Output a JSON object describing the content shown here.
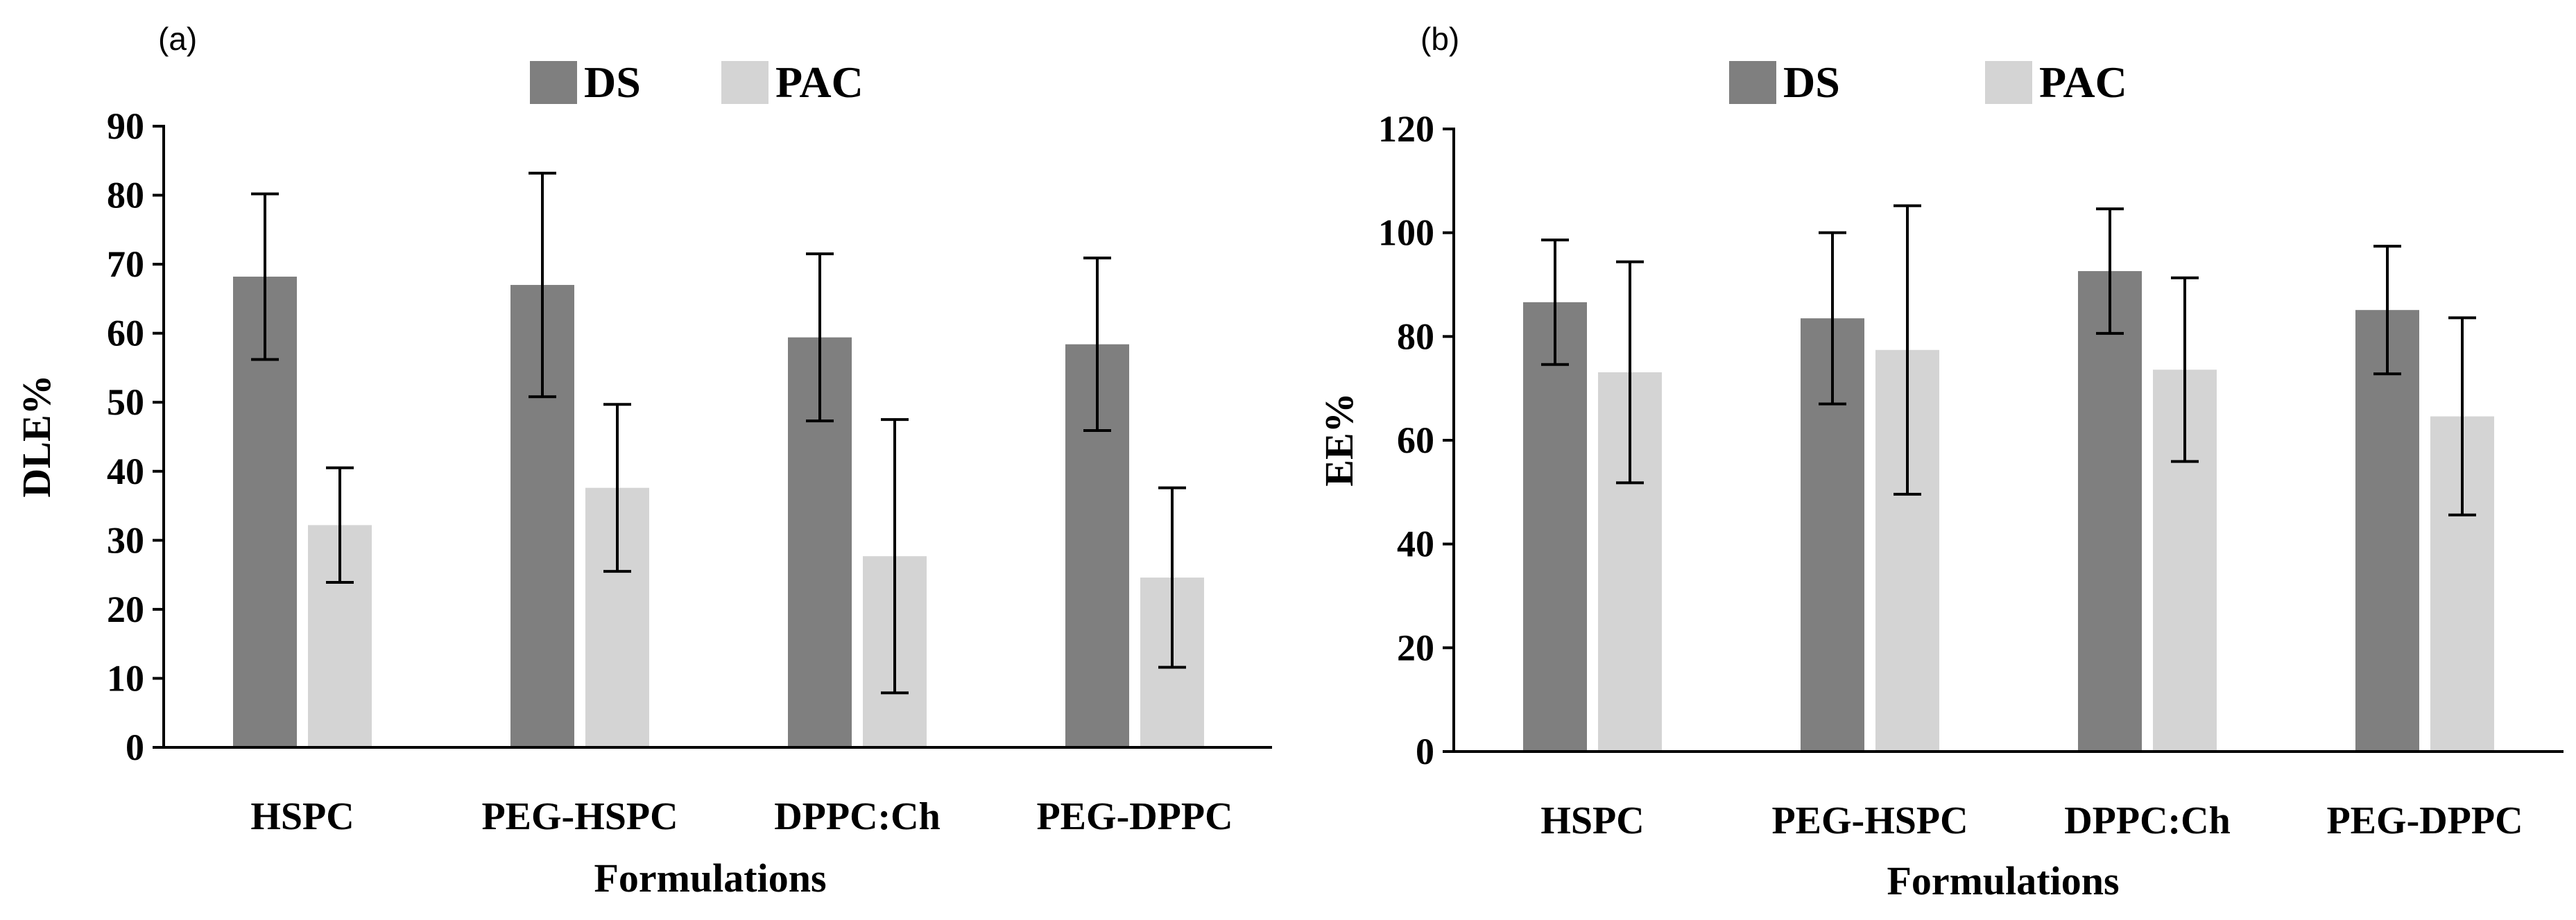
{
  "chart_data": [
    {
      "type": "bar",
      "panel_label": "(a)",
      "categories": [
        "HSPC",
        "PEG-HSPC",
        "DPPC:Ch",
        "PEG-DPPC"
      ],
      "series": [
        {
          "name": "DS",
          "color": "#7f7f7f",
          "values": [
            68.2,
            67.0,
            59.4,
            58.4
          ],
          "errors": [
            12.0,
            16.2,
            12.1,
            12.5
          ]
        },
        {
          "name": "PAC",
          "color": "#d4d4d4",
          "values": [
            32.2,
            37.6,
            27.7,
            24.6
          ],
          "errors": [
            8.3,
            12.1,
            19.8,
            13.0
          ]
        }
      ],
      "xlabel": "Formulations",
      "ylabel": "DLE%",
      "ylim": [
        0,
        90
      ],
      "yticks": [
        0,
        10,
        20,
        30,
        40,
        50,
        60,
        70,
        80,
        90
      ],
      "legend": "top-center",
      "grid": false
    },
    {
      "type": "bar",
      "panel_label": "(b)",
      "categories": [
        "HSPC",
        "PEG-HSPC",
        "DPPC:Ch",
        "PEG-DPPC"
      ],
      "series": [
        {
          "name": "DS",
          "color": "#7f7f7f",
          "values": [
            86.6,
            83.5,
            92.6,
            85.1
          ],
          "errors": [
            12.0,
            16.5,
            12.0,
            12.3
          ]
        },
        {
          "name": "PAC",
          "color": "#d4d4d4",
          "values": [
            73.1,
            77.4,
            73.6,
            64.6
          ],
          "errors": [
            21.3,
            27.8,
            17.7,
            19.0
          ]
        }
      ],
      "xlabel": "Formulations",
      "ylabel": "EE%",
      "ylim": [
        0,
        120
      ],
      "yticks": [
        0,
        20,
        40,
        60,
        80,
        100,
        120
      ],
      "legend": "top-center",
      "grid": false
    }
  ]
}
